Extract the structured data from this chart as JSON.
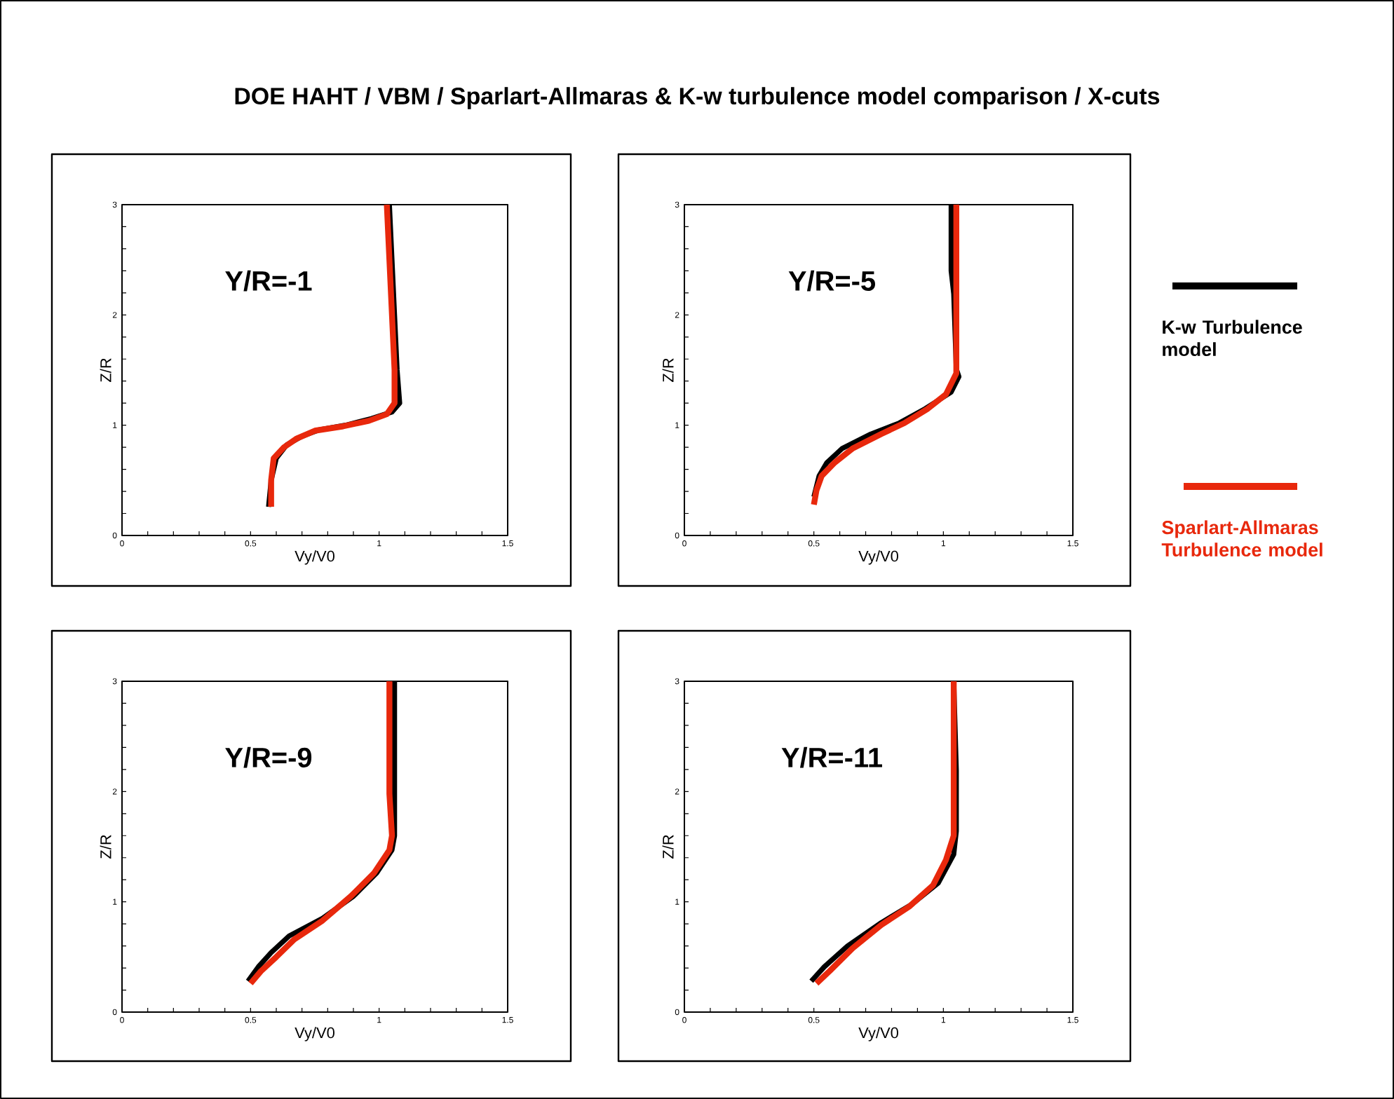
{
  "chart_data": [
    {
      "type": "line",
      "title": "DOE HAHT / VBM / Sparlart-Allmaras & K-w turbulence model comparison / X-cuts",
      "xlabel": "Vy/V0",
      "ylabel": "Z/R",
      "annotations": [
        "Y/R=-1"
      ],
      "xlim": [
        0,
        1.5
      ],
      "ylim": [
        0,
        3
      ],
      "xticks": [
        0,
        {
          "value": 0.1,
          "label": null
        },
        {
          "value": 0.2,
          "label": null
        },
        {
          "value": 0.3,
          "label": null
        },
        {
          "value": 0.4,
          "label": null
        },
        0.5,
        {
          "value": 0.6,
          "label": null
        },
        {
          "value": 0.7,
          "label": null
        },
        {
          "value": 0.8,
          "label": null
        },
        {
          "value": 0.9,
          "label": null
        },
        1,
        {
          "value": 1.1,
          "label": null
        },
        {
          "value": 1.2,
          "label": null
        },
        {
          "value": 1.3,
          "label": null
        },
        {
          "value": 1.4,
          "label": null
        },
        1.5
      ],
      "yticks": [
        0,
        {
          "value": 0.2,
          "label": null
        },
        {
          "value": 0.4,
          "label": null
        },
        {
          "value": 0.6,
          "label": null
        },
        {
          "value": 0.8,
          "label": null
        },
        1,
        {
          "value": 1.2,
          "label": null
        },
        {
          "value": 1.4,
          "label": null
        },
        {
          "value": 1.6,
          "label": null
        },
        {
          "value": 1.8,
          "label": null
        },
        2,
        {
          "value": 2.2,
          "label": null
        },
        {
          "value": 2.4,
          "label": null
        },
        {
          "value": 2.6,
          "label": null
        },
        {
          "value": 2.8,
          "label": null
        },
        3
      ],
      "series": [
        {
          "color": "#000000",
          "x": [
            0.57,
            0.58,
            0.6,
            0.64,
            0.7,
            0.77,
            0.87,
            0.97,
            1.05,
            1.08,
            1.07,
            1.06,
            1.05,
            1.04
          ],
          "values": [
            0.26,
            0.5,
            0.7,
            0.82,
            0.9,
            0.96,
            1.0,
            1.06,
            1.12,
            1.2,
            1.5,
            2.0,
            2.5,
            3.0
          ]
        },
        {
          "color": "#e8280c",
          "x": [
            0.58,
            0.58,
            0.59,
            0.63,
            0.68,
            0.75,
            0.86,
            0.96,
            1.03,
            1.06,
            1.06,
            1.05,
            1.04,
            1.03
          ],
          "values": [
            0.26,
            0.5,
            0.7,
            0.8,
            0.88,
            0.95,
            0.99,
            1.04,
            1.1,
            1.2,
            1.5,
            2.0,
            2.5,
            3.0
          ]
        }
      ]
    },
    {
      "type": "line",
      "xlabel": "Vy/V0",
      "ylabel": "Z/R",
      "annotations": [
        "Y/R=-5"
      ],
      "xlim": [
        0,
        1.5
      ],
      "ylim": [
        0,
        3
      ],
      "legend": "right",
      "xticks": [
        0,
        {
          "value": 0.1,
          "label": null
        },
        {
          "value": 0.2,
          "label": null
        },
        {
          "value": 0.3,
          "label": null
        },
        {
          "value": 0.4,
          "label": null
        },
        0.5,
        {
          "value": 0.6,
          "label": null
        },
        {
          "value": 0.7,
          "label": null
        },
        {
          "value": 0.8,
          "label": null
        },
        {
          "value": 0.9,
          "label": null
        },
        1,
        {
          "value": 1.1,
          "label": null
        },
        {
          "value": 1.2,
          "label": null
        },
        {
          "value": 1.3,
          "label": null
        },
        {
          "value": 1.4,
          "label": null
        },
        1.5
      ],
      "yticks": [
        0,
        {
          "value": 0.2,
          "label": null
        },
        {
          "value": 0.4,
          "label": null
        },
        {
          "value": 0.6,
          "label": null
        },
        {
          "value": 0.8,
          "label": null
        },
        1,
        {
          "value": 1.2,
          "label": null
        },
        {
          "value": 1.4,
          "label": null
        },
        {
          "value": 1.6,
          "label": null
        },
        {
          "value": 1.8,
          "label": null
        },
        2,
        {
          "value": 2.2,
          "label": null
        },
        {
          "value": 2.4,
          "label": null
        },
        {
          "value": 2.6,
          "label": null
        },
        {
          "value": 2.8,
          "label": null
        },
        3
      ],
      "series": [
        {
          "name": "K-w Turbulence model",
          "color": "#000000",
          "x": [
            0.5,
            0.52,
            0.55,
            0.61,
            0.72,
            0.83,
            0.93,
            1.03,
            1.06,
            1.05,
            1.04,
            1.03,
            1.03
          ],
          "values": [
            0.35,
            0.54,
            0.66,
            0.79,
            0.92,
            1.02,
            1.15,
            1.3,
            1.44,
            1.51,
            2.19,
            2.4,
            3.0
          ]
        },
        {
          "name": "Sparlart-Allmaras Turbulence model",
          "color": "#e8280c",
          "x": [
            0.5,
            0.51,
            0.53,
            0.58,
            0.65,
            0.76,
            0.85,
            0.94,
            1.01,
            1.05,
            1.05
          ],
          "values": [
            0.28,
            0.41,
            0.54,
            0.66,
            0.79,
            0.92,
            1.02,
            1.15,
            1.28,
            1.47,
            3.0
          ]
        }
      ]
    },
    {
      "type": "line",
      "xlabel": "Vy/V0",
      "ylabel": "Z/R",
      "annotations": [
        "Y/R=-9"
      ],
      "xlim": [
        0,
        1.5
      ],
      "ylim": [
        0,
        3
      ],
      "xticks": [
        0,
        {
          "value": 0.1,
          "label": null
        },
        {
          "value": 0.2,
          "label": null
        },
        {
          "value": 0.3,
          "label": null
        },
        {
          "value": 0.4,
          "label": null
        },
        0.5,
        {
          "value": 0.6,
          "label": null
        },
        {
          "value": 0.7,
          "label": null
        },
        {
          "value": 0.8,
          "label": null
        },
        {
          "value": 0.9,
          "label": null
        },
        1,
        {
          "value": 1.1,
          "label": null
        },
        {
          "value": 1.2,
          "label": null
        },
        {
          "value": 1.3,
          "label": null
        },
        {
          "value": 1.4,
          "label": null
        },
        1.5
      ],
      "yticks": [
        0,
        {
          "value": 0.2,
          "label": null
        },
        {
          "value": 0.4,
          "label": null
        },
        {
          "value": 0.6,
          "label": null
        },
        {
          "value": 0.8,
          "label": null
        },
        1,
        {
          "value": 1.2,
          "label": null
        },
        {
          "value": 1.4,
          "label": null
        },
        {
          "value": 1.6,
          "label": null
        },
        {
          "value": 1.8,
          "label": null
        },
        2,
        {
          "value": 2.2,
          "label": null
        },
        {
          "value": 2.4,
          "label": null
        },
        {
          "value": 2.6,
          "label": null
        },
        {
          "value": 2.8,
          "label": null
        },
        3
      ],
      "series": [
        {
          "color": "#000000",
          "x": [
            0.49,
            0.53,
            0.58,
            0.65,
            0.78,
            0.9,
            0.99,
            1.05,
            1.06,
            1.06
          ],
          "values": [
            0.28,
            0.41,
            0.54,
            0.69,
            0.85,
            1.05,
            1.26,
            1.47,
            1.6,
            3.0
          ]
        },
        {
          "color": "#e8280c",
          "x": [
            0.5,
            0.54,
            0.6,
            0.67,
            0.78,
            0.89,
            0.98,
            1.04,
            1.05,
            1.04,
            1.04
          ],
          "values": [
            0.26,
            0.37,
            0.5,
            0.66,
            0.83,
            1.05,
            1.26,
            1.47,
            1.6,
            1.98,
            3.0
          ]
        }
      ]
    },
    {
      "type": "line",
      "xlabel": "Vy/V0",
      "ylabel": "Z/R",
      "annotations": [
        "Y/R=-11"
      ],
      "xlim": [
        0,
        1.5
      ],
      "ylim": [
        0,
        3
      ],
      "xticks": [
        0,
        {
          "value": 0.1,
          "label": null
        },
        {
          "value": 0.2,
          "label": null
        },
        {
          "value": 0.3,
          "label": null
        },
        {
          "value": 0.4,
          "label": null
        },
        0.5,
        {
          "value": 0.6,
          "label": null
        },
        {
          "value": 0.7,
          "label": null
        },
        {
          "value": 0.8,
          "label": null
        },
        {
          "value": 0.9,
          "label": null
        },
        1,
        {
          "value": 1.1,
          "label": null
        },
        {
          "value": 1.2,
          "label": null
        },
        {
          "value": 1.3,
          "label": null
        },
        {
          "value": 1.4,
          "label": null
        },
        1.5
      ],
      "yticks": [
        0,
        {
          "value": 0.2,
          "label": null
        },
        {
          "value": 0.4,
          "label": null
        },
        {
          "value": 0.6,
          "label": null
        },
        {
          "value": 0.8,
          "label": null
        },
        1,
        {
          "value": 1.2,
          "label": null
        },
        {
          "value": 1.4,
          "label": null
        },
        {
          "value": 1.6,
          "label": null
        },
        {
          "value": 1.8,
          "label": null
        },
        2,
        {
          "value": 2.2,
          "label": null
        },
        {
          "value": 2.4,
          "label": null
        },
        {
          "value": 2.6,
          "label": null
        },
        {
          "value": 2.8,
          "label": null
        },
        3
      ],
      "series": [
        {
          "color": "#000000",
          "x": [
            0.49,
            0.54,
            0.63,
            0.76,
            0.88,
            0.98,
            1.04,
            1.05,
            1.05,
            1.04
          ],
          "values": [
            0.28,
            0.41,
            0.6,
            0.81,
            0.98,
            1.17,
            1.43,
            1.64,
            2.19,
            3.0
          ]
        },
        {
          "color": "#e8280c",
          "x": [
            0.51,
            0.56,
            0.65,
            0.76,
            0.87,
            0.96,
            1.01,
            1.04,
            1.04
          ],
          "values": [
            0.26,
            0.37,
            0.58,
            0.79,
            0.96,
            1.15,
            1.38,
            1.6,
            3.0
          ]
        }
      ]
    }
  ]
}
